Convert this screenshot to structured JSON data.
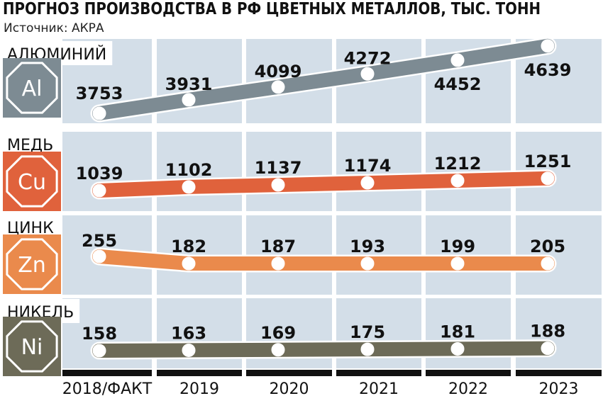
{
  "header": {
    "title": "ПРОГНОЗ ПРОИЗВОДСТВА В РФ ЦВЕТНЫХ МЕТАЛЛОВ, ТЫС. ТОНН",
    "source": "Источник: АКРА"
  },
  "chart_data": {
    "type": "line",
    "categories": [
      "2018/ФАКТ",
      "2019",
      "2020",
      "2021",
      "2022",
      "2023"
    ],
    "series": [
      {
        "name": "АЛЮМИНИЙ",
        "symbol": "Al",
        "color": "#7d8b93",
        "values": [
          3753,
          3931,
          4099,
          4272,
          4452,
          4639
        ]
      },
      {
        "name": "МЕДЬ",
        "symbol": "Cu",
        "color": "#e0623c",
        "values": [
          1039,
          1102,
          1137,
          1174,
          1212,
          1251
        ]
      },
      {
        "name": "ЦИНК",
        "symbol": "Zn",
        "color": "#ea8a4c",
        "values": [
          255,
          182,
          187,
          193,
          199,
          205
        ]
      },
      {
        "name": "НИКЕЛЬ",
        "symbol": "Ni",
        "color": "#6d6b58",
        "values": [
          158,
          163,
          169,
          175,
          181,
          188
        ]
      }
    ],
    "grid": true
  }
}
